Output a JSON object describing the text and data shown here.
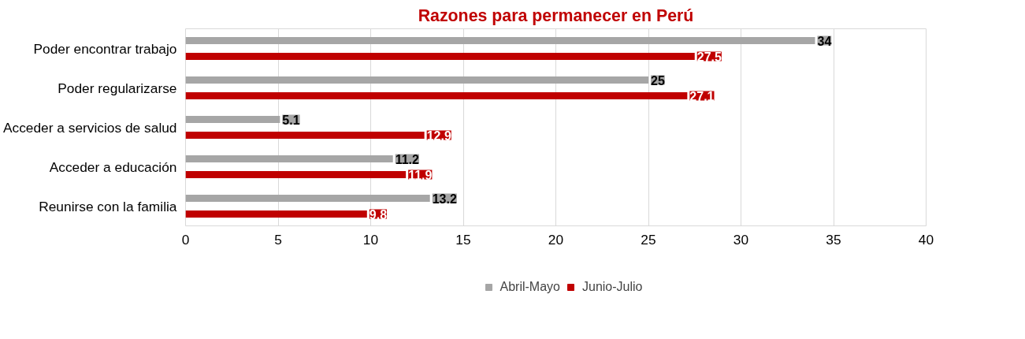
{
  "chart_data": {
    "type": "bar",
    "orientation": "horizontal",
    "title": "Razones para permanecer en Perú",
    "categories": [
      "Poder encontrar trabajo",
      "Poder regularizarse",
      "Acceder a servicios de salud",
      "Acceder a educación",
      "Reunirse con la familia"
    ],
    "series": [
      {
        "name": "Abril-Mayo",
        "color": "#a6a6a6",
        "values": [
          34,
          25,
          5.1,
          11.2,
          13.2
        ]
      },
      {
        "name": "Junio-Julio",
        "color": "#c00000",
        "values": [
          27.5,
          27.1,
          12.9,
          11.9,
          9.8
        ]
      }
    ],
    "xlim": [
      0,
      40
    ],
    "xticks": [
      0,
      5,
      10,
      15,
      20,
      25,
      30,
      35,
      40
    ],
    "grid": "x",
    "legend": "bottom",
    "data_labels": true
  }
}
